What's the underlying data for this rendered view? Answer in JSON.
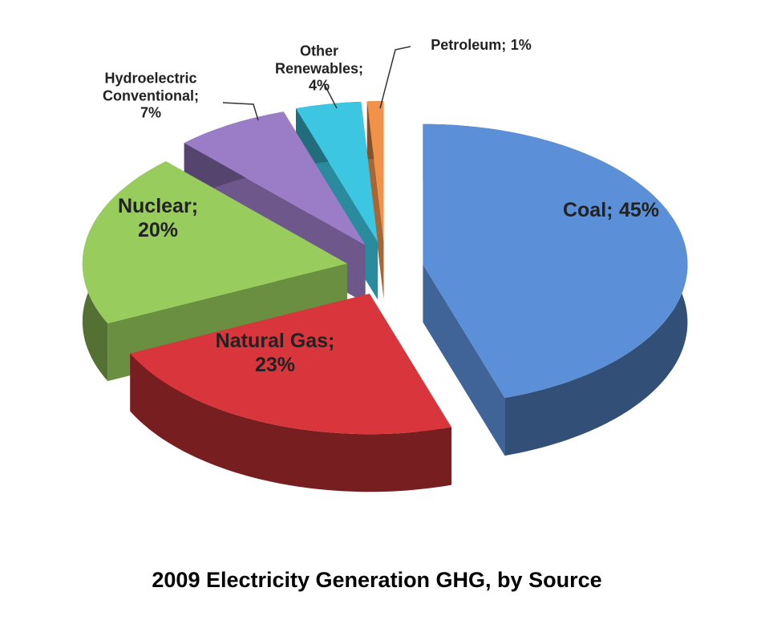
{
  "chart_data": {
    "type": "pie",
    "title": "2009 Electricity Generation GHG, by Source",
    "categories": [
      "Coal;",
      "Natural Gas;",
      "Nuclear;",
      "Hydroelectric Conventional;",
      "Other Renewables;",
      "Petroleum;"
    ],
    "values": [
      45,
      23,
      20,
      7,
      4,
      1
    ],
    "value_labels": [
      "45%",
      "23%",
      "20%",
      "7%",
      "4%",
      "1%"
    ],
    "colors": [
      "#5b8fd8",
      "#d8363c",
      "#98cc5c",
      "#9b7cc6",
      "#3cc6e2",
      "#f0924a"
    ]
  }
}
